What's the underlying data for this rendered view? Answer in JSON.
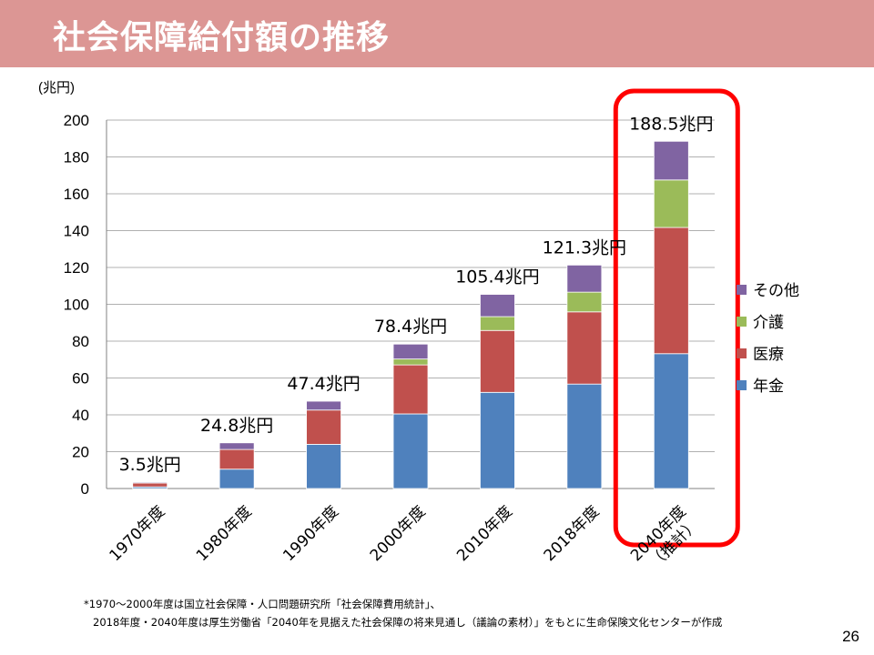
{
  "slide": {
    "title": "社会保障給付額の推移",
    "page_number": "26",
    "footnote_line1": "*1970～2000年度は国立社会保障・人口問題研究所「社会保障費用統計」、",
    "footnote_line2": "2018年度・2040年度は厚生労働省「2040年を見据えた社会保障の将来見通し（議論の素材）」をもとに生命保険文化センターが作成"
  },
  "chart_data": {
    "type": "bar",
    "stacked": true,
    "title": "",
    "xlabel": "",
    "ylabel": "(兆円)",
    "ylim": [
      0,
      200
    ],
    "yticks": [
      0,
      20,
      40,
      60,
      80,
      100,
      120,
      140,
      160,
      180,
      200
    ],
    "grid": true,
    "legend_position": "right",
    "categories": [
      "1970年度",
      "1980年度",
      "1990年度",
      "2000年度",
      "2010年度",
      "2018年度",
      "2040年度|（推計）"
    ],
    "series": [
      {
        "name": "年金",
        "color": "#4f81bd",
        "values": [
          0.9,
          10.5,
          24.0,
          40.5,
          52.2,
          56.7,
          73.2
        ]
      },
      {
        "name": "医療",
        "color": "#c0504d",
        "values": [
          2.1,
          10.7,
          18.6,
          26.6,
          33.6,
          39.2,
          68.5
        ]
      },
      {
        "name": "介護",
        "color": "#9bbb59",
        "values": [
          0,
          0,
          0,
          3.2,
          7.5,
          10.7,
          25.8
        ]
      },
      {
        "name": "その他",
        "color": "#8064a2",
        "values": [
          0.5,
          3.6,
          4.8,
          8.1,
          12.1,
          14.7,
          21.0
        ]
      }
    ],
    "total_labels": [
      "3.5兆円",
      "24.8兆円",
      "47.4兆円",
      "78.4兆円",
      "105.4兆円",
      "121.3兆円",
      "188.5兆円"
    ],
    "highlight": {
      "category_index": 6,
      "color": "#ff0000"
    }
  }
}
